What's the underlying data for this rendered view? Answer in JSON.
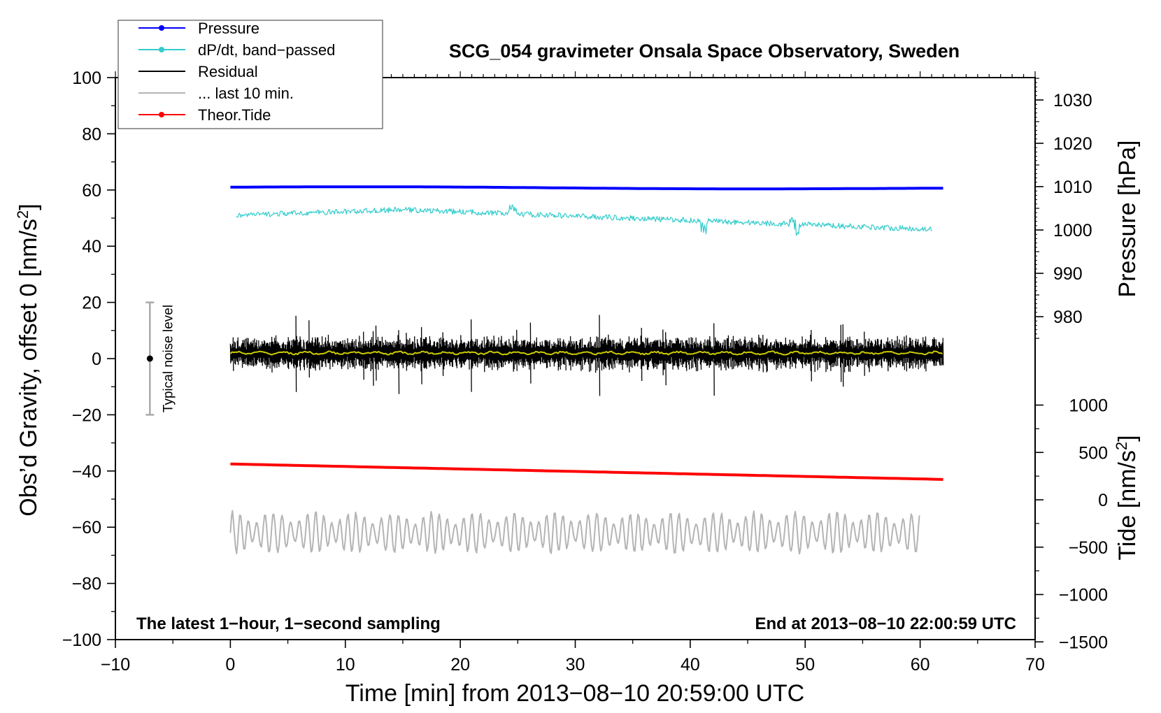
{
  "chart_data": {
    "type": "line",
    "title": "SCG_054 gravimeter Onsala Space Observatory, Sweden",
    "xlabel": "Time [min] from 2013−08−10 20:59:00 UTC",
    "ylabel_left": "Obs’d Gravity, offset 0 [nm/s",
    "ylabel_left_sup": "2",
    "ylabel_left_end": "]",
    "ylabel_pressure": "Pressure [hPa]",
    "ylabel_tide": "Tide [nm/s",
    "ylabel_tide_sup": "2",
    "ylabel_tide_end": "]",
    "xlim": [
      -10,
      70
    ],
    "ylim": [
      -100,
      100
    ],
    "x_ticks": [
      -10,
      0,
      10,
      20,
      30,
      40,
      50,
      60,
      70
    ],
    "x_tick_labels": [
      "−10",
      "0",
      "10",
      "20",
      "30",
      "40",
      "50",
      "60",
      "70"
    ],
    "y_ticks": [
      100,
      80,
      60,
      40,
      20,
      0,
      -20,
      -40,
      -60,
      -80,
      -100
    ],
    "y_tick_labels": [
      "100",
      "80",
      "60",
      "40",
      "20",
      "0",
      "−20",
      "−40",
      "−60",
      "−80",
      "−100"
    ],
    "pressure_axis": {
      "ticks": [
        1030,
        1020,
        1010,
        1000,
        990,
        980
      ],
      "tick_labels": [
        "1030",
        "1020",
        "1010",
        "1000",
        "990",
        "980"
      ],
      "range": [
        975,
        1035
      ]
    },
    "tide_axis": {
      "ticks": [
        1000,
        500,
        0,
        -500,
        -1000,
        -1500
      ],
      "tick_labels": [
        "1000",
        "500",
        "0",
        "−500",
        "−1000",
        "−1500"
      ],
      "range": [
        -1500,
        1000
      ]
    },
    "annotations": {
      "bottom_left": "The latest 1−hour, 1−second sampling",
      "bottom_right": "End at 2013−08−10 22:00:59 UTC"
    },
    "noise_bar": {
      "label": "Typical noise level",
      "x": -7,
      "center": 0,
      "low": -20,
      "high": 20
    },
    "legend": [
      {
        "label": "Pressure",
        "color": "#0000ff",
        "marker": true
      },
      {
        "label": "dP/dt, band−passed",
        "color": "#33cccc",
        "marker": true
      },
      {
        "label": "Residual",
        "color": "#000000",
        "marker": false
      },
      {
        "label": "... last 10 min.",
        "color": "#b4b4b4",
        "marker": false
      },
      {
        "label": "Theor.Tide",
        "color": "#ff0000",
        "marker": true
      }
    ],
    "series": [
      {
        "name": "Pressure",
        "color": "#0000ff",
        "x_range": [
          0,
          62
        ],
        "start": 61.0,
        "end": 60.5,
        "pattern": "flat-slight-decline"
      },
      {
        "name": "dP/dt, band-passed",
        "color": "#33cccc",
        "x_range": [
          0.5,
          61
        ],
        "start": 51,
        "peak_x": 15,
        "peak": 53,
        "end": 46,
        "noise_amp": 1.2
      },
      {
        "name": "Residual",
        "color": "#000000",
        "x_range": [
          0,
          62
        ],
        "center": 2,
        "noise_amp": 4
      },
      {
        "name": "Residual smoothed",
        "color": "#cccc00",
        "x_range": [
          0,
          62
        ],
        "center": 2,
        "noise_amp": 0.6
      },
      {
        "name": "Theor.Tide",
        "color": "#ff0000",
        "x_range": [
          0,
          62
        ],
        "start": -37.5,
        "end": -43
      },
      {
        "name": "... last 10 min.",
        "color": "#b4b4b4",
        "x_range": [
          0,
          60
        ],
        "center": -62,
        "amp": 8
      }
    ]
  }
}
